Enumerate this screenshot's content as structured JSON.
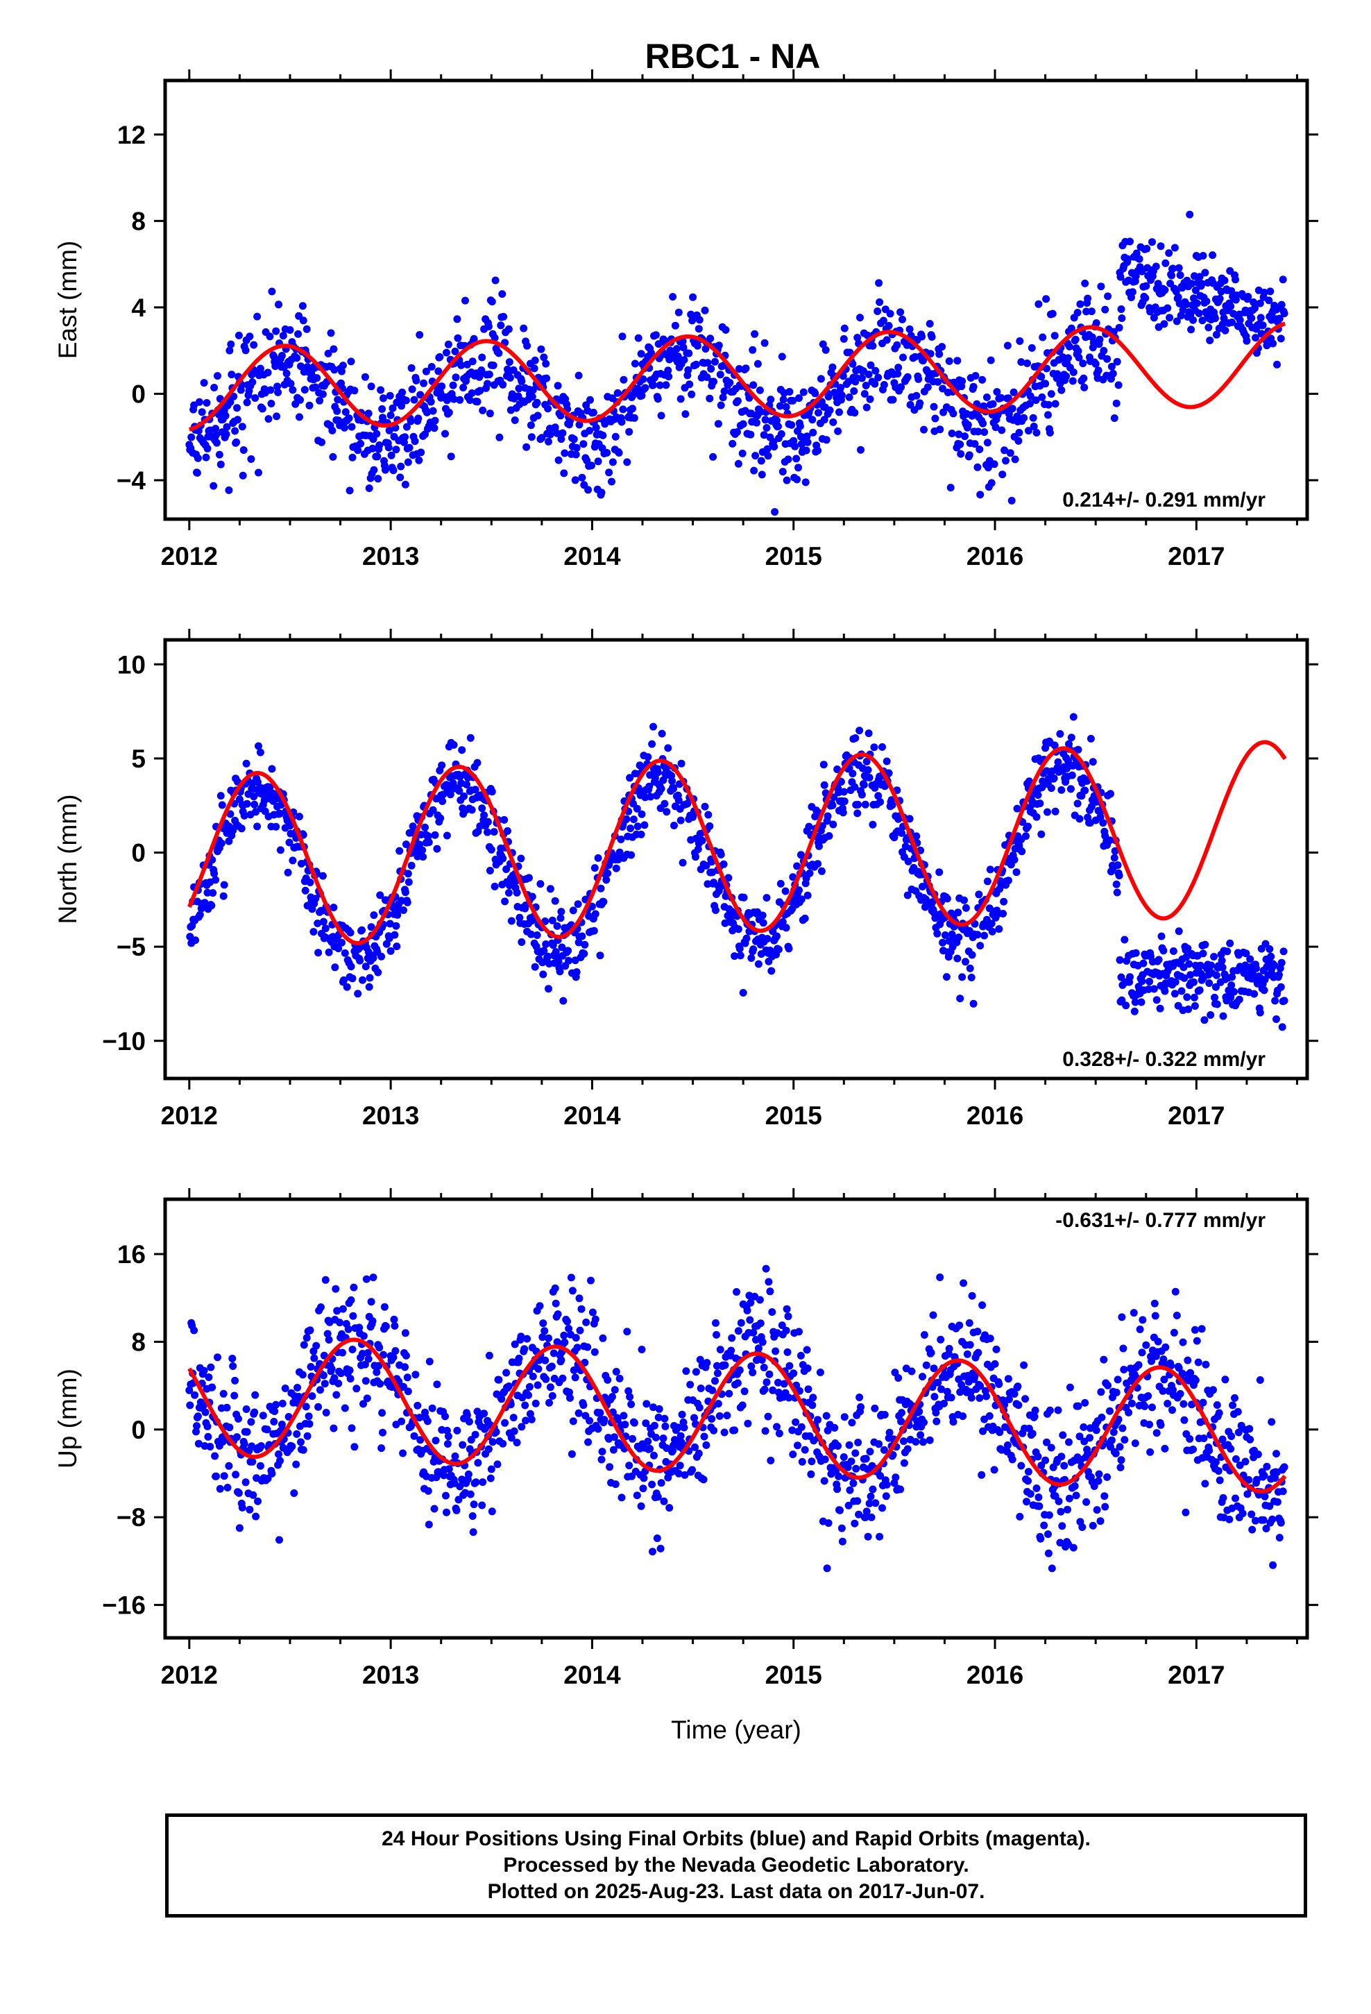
{
  "title": "RBC1 - NA",
  "footer": {
    "line1": "24 Hour Positions Using Final Orbits (blue) and Rapid Orbits (magenta).",
    "line2": "Processed by the Nevada Geodetic Laboratory.",
    "line3": "Plotted on 2025-Aug-23. Last data on 2017-Jun-07."
  },
  "colors": {
    "final_orbits": "#0000ff",
    "model_fit": "#ff0000",
    "frame": "#000000"
  },
  "chart_data": [
    {
      "type": "scatter",
      "ylabel": "East (mm)",
      "xlabel": "",
      "xlim": [
        2011.88,
        2017.55
      ],
      "ylim": [
        -5.8,
        14.5
      ],
      "xticks": [
        2012,
        2013,
        2014,
        2015,
        2016,
        2017
      ],
      "yticks": [
        -4,
        0,
        4,
        8,
        12
      ],
      "ytick_labels": [
        "−4",
        "0",
        "4",
        "8",
        "12"
      ],
      "rate_label": "0.214+/- 0.291 mm/yr",
      "rate_position": "bottom-right",
      "series": [
        {
          "kind": "points",
          "style": "blue dots",
          "segments": [
            {
              "t0": 2012.0,
              "t1": 2016.62,
              "trend": 0.214,
              "offset": 0.1,
              "amp": 1.9,
              "phase": -1.4,
              "noise": 1.3
            },
            {
              "t0": 2016.62,
              "t1": 2017.44,
              "trend": -3.0,
              "offset": 11.5,
              "amp": 0.0,
              "phase": 0.0,
              "noise": 1.0
            }
          ]
        },
        {
          "kind": "model",
          "style": "red line",
          "model": {
            "t0": 2012.0,
            "t1": 2017.44,
            "trend": 0.214,
            "offset": 0.8,
            "amp": 1.9,
            "phase": -1.4
          }
        }
      ]
    },
    {
      "type": "scatter",
      "ylabel": "North (mm)",
      "xlabel": "",
      "xlim": [
        2011.88,
        2017.55
      ],
      "ylim": [
        -12,
        11.3
      ],
      "xticks": [
        2012,
        2013,
        2014,
        2015,
        2016,
        2017
      ],
      "yticks": [
        -10,
        -5,
        0,
        5,
        10
      ],
      "ytick_labels": [
        "−10",
        "−5",
        "0",
        "5",
        "10"
      ],
      "rate_label": "0.328+/- 0.322 mm/yr",
      "rate_position": "bottom-right",
      "series": [
        {
          "kind": "points",
          "style": "blue dots",
          "segments": [
            {
              "t0": 2012.0,
              "t1": 2016.62,
              "trend": 0.328,
              "offset": -0.4,
              "amp": 4.5,
              "phase": -0.55,
              "noise": 1.1
            },
            {
              "t0": 2016.62,
              "t1": 2017.44,
              "trend": 0.0,
              "offset": -6.5,
              "amp": 0.0,
              "phase": 0.0,
              "noise": 1.1
            }
          ]
        },
        {
          "kind": "model",
          "style": "red line",
          "model": {
            "t0": 2012.0,
            "t1": 2017.44,
            "trend": 0.328,
            "offset": 0.4,
            "amp": 4.6,
            "phase": -0.55
          }
        }
      ]
    },
    {
      "type": "scatter",
      "ylabel": "Up (mm)",
      "xlabel": "Time (year)",
      "xlim": [
        2011.88,
        2017.55
      ],
      "ylim": [
        -19,
        21
      ],
      "xticks": [
        2012,
        2013,
        2014,
        2015,
        2016,
        2017
      ],
      "yticks": [
        -16,
        -8,
        0,
        8,
        16
      ],
      "ytick_labels": [
        "−16",
        "−8",
        "0",
        "8",
        "16"
      ],
      "rate_label": "-0.631+/- 0.777 mm/yr",
      "rate_position": "top-right",
      "series": [
        {
          "kind": "points",
          "style": "blue dots",
          "segments": [
            {
              "t0": 2012.0,
              "t1": 2017.44,
              "trend": -0.631,
              "offset": 1.5,
              "amp": 5.5,
              "phase": 2.7,
              "noise": 3.2
            }
          ]
        },
        {
          "kind": "model",
          "style": "red line",
          "model": {
            "t0": 2012.0,
            "t1": 2017.44,
            "trend": -0.631,
            "offset": 1.5,
            "amp": 5.5,
            "phase": 2.7
          }
        }
      ]
    }
  ]
}
